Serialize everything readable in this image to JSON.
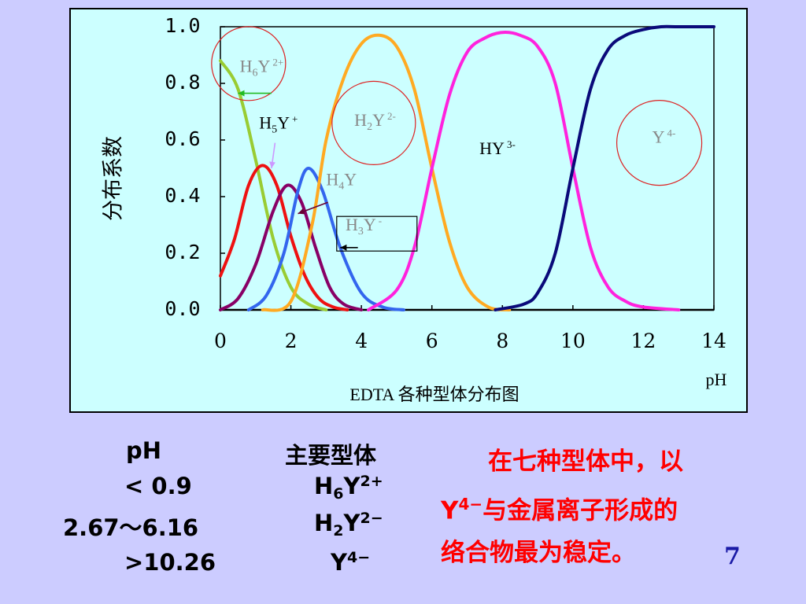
{
  "chart_data": {
    "type": "line",
    "caption": "EDTA 各种型体分布图",
    "xlabel": "pH",
    "ylabel": "分布系数",
    "xlim": [
      0,
      14
    ],
    "ylim": [
      0,
      1.0
    ],
    "x_ticks": [
      "0",
      "2",
      "4",
      "6",
      "8",
      "10",
      "12",
      "14"
    ],
    "y_ticks": [
      "0.0",
      "0.2",
      "0.4",
      "0.6",
      "0.8",
      "1.0"
    ],
    "series": [
      {
        "name": "H6Y2+",
        "color": "#99cc33",
        "x": [
          0,
          0.5,
          1.0,
          1.5,
          2.0,
          2.5,
          3.0
        ],
        "y": [
          0.88,
          0.78,
          0.53,
          0.25,
          0.08,
          0.02,
          0.0
        ]
      },
      {
        "name": "H5Y+",
        "color": "#ee1111",
        "x": [
          0,
          0.4,
          0.8,
          1.2,
          1.6,
          2.0,
          2.4,
          2.8,
          3.2,
          3.6
        ],
        "y": [
          0.12,
          0.25,
          0.44,
          0.51,
          0.44,
          0.26,
          0.12,
          0.04,
          0.01,
          0.0
        ]
      },
      {
        "name": "H4Y",
        "color": "#880066",
        "x": [
          0,
          0.5,
          1.0,
          1.5,
          1.9,
          2.3,
          2.7,
          3.1,
          3.5,
          4.0
        ],
        "y": [
          0.0,
          0.04,
          0.16,
          0.35,
          0.44,
          0.38,
          0.22,
          0.08,
          0.02,
          0.0
        ]
      },
      {
        "name": "H3Y-",
        "color": "#3366ee",
        "x": [
          0.8,
          1.3,
          1.8,
          2.2,
          2.5,
          2.9,
          3.4,
          4.0,
          4.6,
          5.2
        ],
        "y": [
          0.0,
          0.05,
          0.2,
          0.42,
          0.5,
          0.42,
          0.22,
          0.06,
          0.01,
          0.0
        ]
      },
      {
        "name": "H2Y2-",
        "color": "#ffaa22",
        "x": [
          1.2,
          2.0,
          2.6,
          3.0,
          3.5,
          4.0,
          4.5,
          5.0,
          5.5,
          6.0,
          6.5,
          7.0,
          7.6,
          8.2
        ],
        "y": [
          0.0,
          0.03,
          0.3,
          0.6,
          0.82,
          0.94,
          0.97,
          0.93,
          0.78,
          0.5,
          0.24,
          0.08,
          0.01,
          0.0
        ]
      },
      {
        "name": "HY3-",
        "color": "#ff22dd",
        "x": [
          4.2,
          5.0,
          5.5,
          6.0,
          6.5,
          7.0,
          7.5,
          8.0,
          8.5,
          9.0,
          9.5,
          10.0,
          10.5,
          11.0,
          11.5,
          12.0,
          13.0
        ],
        "y": [
          0.0,
          0.07,
          0.22,
          0.5,
          0.76,
          0.91,
          0.96,
          0.98,
          0.97,
          0.93,
          0.8,
          0.5,
          0.22,
          0.08,
          0.03,
          0.01,
          0.0
        ]
      },
      {
        "name": "Y4-",
        "color": "#0a0a7a",
        "x": [
          7.8,
          8.6,
          9.0,
          9.5,
          10.0,
          10.5,
          11.0,
          11.5,
          12.0,
          12.5,
          13.0,
          14.0
        ],
        "y": [
          0.0,
          0.02,
          0.06,
          0.2,
          0.5,
          0.78,
          0.92,
          0.97,
          0.99,
          1.0,
          1.0,
          1.0
        ]
      }
    ],
    "annotations": [
      {
        "id": "h6y",
        "base": "H",
        "sub": "6",
        "mid": "Y",
        "sup": "2+",
        "color": "#888888",
        "pos": [
          0.55,
          0.84
        ]
      },
      {
        "id": "h5y",
        "base": "H",
        "sub": "5",
        "mid": "Y",
        "sup": "+",
        "color": "#000000",
        "pos": [
          1.1,
          0.64
        ]
      },
      {
        "id": "h2y",
        "base": "H",
        "sub": "2",
        "mid": "Y",
        "sup": "2-",
        "color": "#888888",
        "pos": [
          3.8,
          0.65
        ]
      },
      {
        "id": "hy",
        "base": "HY",
        "sub": "",
        "mid": "",
        "sup": "3-",
        "color": "#000000",
        "pos": [
          7.35,
          0.55
        ]
      },
      {
        "id": "h4y",
        "base": "H",
        "sub": "4",
        "mid": "Y",
        "sup": "",
        "color": "#888888",
        "pos": [
          3.0,
          0.44
        ]
      },
      {
        "id": "h3y",
        "base": "H",
        "sub": "3",
        "mid": "Y",
        "sup": "-",
        "color": "#888888",
        "pos": [
          3.55,
          0.28
        ]
      },
      {
        "id": "y4",
        "base": "Y",
        "sub": "",
        "mid": "",
        "sup": "4-",
        "color": "#888888",
        "pos": [
          12.25,
          0.59
        ]
      }
    ]
  },
  "table": {
    "col1_header": "pH",
    "col2_header": "主要型体",
    "rows": [
      {
        "ph": "< 0.9",
        "species_base": "H",
        "species_sub": "6",
        "species_mid": "Y",
        "species_sup": "2+"
      },
      {
        "ph": "2.67～6.16",
        "species_base": "H",
        "species_sub": "2",
        "species_mid": "Y",
        "species_sup": "2−"
      },
      {
        "ph": ">10.26",
        "species_base": "Y",
        "species_sub": "",
        "species_mid": "",
        "species_sup": "4−"
      }
    ]
  },
  "note": {
    "line1": "在七种型体中，以",
    "line2_y": "Y",
    "line2_sup": "4−",
    "line2_rest": "与金属离子形成的",
    "line3": "络合物最为稳定。"
  },
  "page_number": "7"
}
